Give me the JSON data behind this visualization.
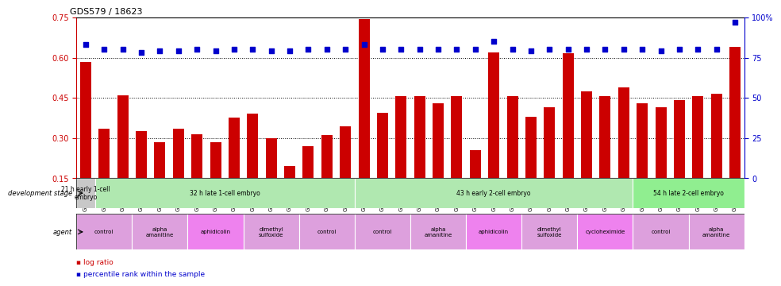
{
  "title": "GDS579 / 18623",
  "samples": [
    "GSM14695",
    "GSM14696",
    "GSM14697",
    "GSM14698",
    "GSM14699",
    "GSM14700",
    "GSM14707",
    "GSM14708",
    "GSM14709",
    "GSM14716",
    "GSM14717",
    "GSM14718",
    "GSM14722",
    "GSM14723",
    "GSM14724",
    "GSM14701",
    "GSM14702",
    "GSM14703",
    "GSM14710",
    "GSM14711",
    "GSM14712",
    "GSM14719",
    "GSM14720",
    "GSM14721",
    "GSM14725",
    "GSM14726",
    "GSM14727",
    "GSM14728",
    "GSM14729",
    "GSM14730",
    "GSM14704",
    "GSM14705",
    "GSM14706",
    "GSM14713",
    "GSM14714",
    "GSM14715"
  ],
  "log_ratio": [
    0.585,
    0.335,
    0.46,
    0.325,
    0.285,
    0.335,
    0.315,
    0.285,
    0.375,
    0.39,
    0.3,
    0.195,
    0.27,
    0.31,
    0.345,
    0.745,
    0.395,
    0.455,
    0.455,
    0.43,
    0.455,
    0.255,
    0.62,
    0.455,
    0.38,
    0.415,
    0.615,
    0.475,
    0.455,
    0.49,
    0.43,
    0.415,
    0.44,
    0.455,
    0.465,
    0.64
  ],
  "percentile": [
    83,
    80,
    80,
    78,
    79,
    79,
    80,
    79,
    80,
    80,
    79,
    79,
    80,
    80,
    80,
    83,
    80,
    80,
    80,
    80,
    80,
    80,
    85,
    80,
    79,
    80,
    80,
    80,
    80,
    80,
    80,
    79,
    80,
    80,
    80,
    97
  ],
  "ylim_left": [
    0.15,
    0.75
  ],
  "yticks_left": [
    0.15,
    0.3,
    0.45,
    0.6,
    0.75
  ],
  "ylim_right": [
    0,
    100
  ],
  "yticks_right": [
    0,
    25,
    50,
    75,
    100
  ],
  "ytick_right_labels": [
    "0",
    "25",
    "50",
    "75",
    "100%"
  ],
  "bar_color": "#cc0000",
  "dot_color": "#0000cc",
  "bg_color": "#ffffff",
  "dev_stage_colors": [
    "#c8c8c8",
    "#b0e8b0",
    "#b0e8b0",
    "#90ee90"
  ],
  "dev_stages": [
    {
      "label": "21 h early 1-cell\nembryo",
      "start": 0,
      "end": 1
    },
    {
      "label": "32 h late 1-cell embryo",
      "start": 1,
      "end": 15
    },
    {
      "label": "43 h early 2-cell embryo",
      "start": 15,
      "end": 30
    },
    {
      "label": "54 h late 2-cell embryo",
      "start": 30,
      "end": 36
    }
  ],
  "agent_groups": [
    {
      "label": "control",
      "start": 0,
      "end": 3,
      "color": "#dda0dd"
    },
    {
      "label": "alpha\namanitine",
      "start": 3,
      "end": 6,
      "color": "#dda0dd"
    },
    {
      "label": "aphidicolin",
      "start": 6,
      "end": 9,
      "color": "#ee82ee"
    },
    {
      "label": "dimethyl\nsulfoxide",
      "start": 9,
      "end": 12,
      "color": "#dda0dd"
    },
    {
      "label": "control",
      "start": 12,
      "end": 15,
      "color": "#dda0dd"
    },
    {
      "label": "control",
      "start": 15,
      "end": 18,
      "color": "#dda0dd"
    },
    {
      "label": "alpha\namanitine",
      "start": 18,
      "end": 21,
      "color": "#dda0dd"
    },
    {
      "label": "aphidicolin",
      "start": 21,
      "end": 24,
      "color": "#ee82ee"
    },
    {
      "label": "dimethyl\nsulfoxide",
      "start": 24,
      "end": 27,
      "color": "#dda0dd"
    },
    {
      "label": "cycloheximide",
      "start": 27,
      "end": 30,
      "color": "#ee82ee"
    },
    {
      "label": "control",
      "start": 30,
      "end": 33,
      "color": "#dda0dd"
    },
    {
      "label": "alpha\namanitine",
      "start": 33,
      "end": 36,
      "color": "#dda0dd"
    }
  ]
}
